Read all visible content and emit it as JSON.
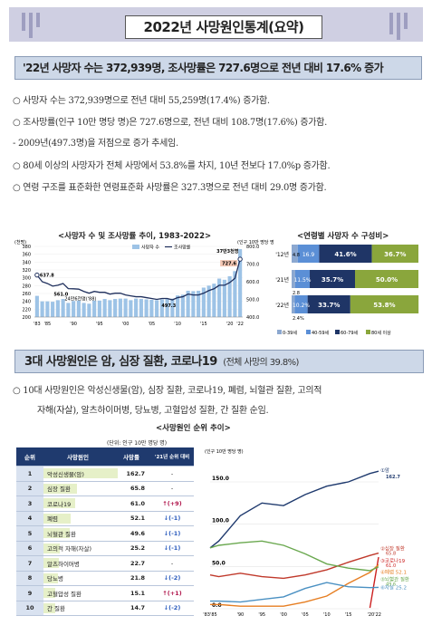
{
  "title": "2022년 사망원인통계(요약)",
  "headline": "'22년 사망자 수는 372,939명, 조사망률은 727.6명으로 전년 대비 17.6% 증가",
  "bullets": [
    "○  사망자 수는 372,939명으로 전년 대비 55,259명(17.4%) 증가함.",
    "○  조사망률(인구 10만 명당 명)은 727.6명으로, 전년 대비 108.7명(17.6%) 증가함.",
    "  - 2009년(497.3명)을 저점으로 증가 추세임.",
    "○  80세 이상의 사망자가 전체 사망에서 53.8%를 차지, 10년 전보다 17.0%p 증가함.",
    "○  연령 구조를 표준화한 연령표준화 사망률은 327.3명으로 전년 대비 29.0명 증가함."
  ],
  "chart1": {
    "title": "<사망자 수 및 조사망률 추이, 1983-2022>",
    "left_unit": "(천명)",
    "right_unit": "(인구 10만 명당 명)",
    "legend_bar": "사망자 수",
    "legend_line": "조사망률",
    "ann_top": "37만3천명",
    "ann_top_rate": "727.6",
    "ann_low": "24만6천명('88)",
    "ann_start": "637.8",
    "ann_561": "561.0",
    "ann_497": "497.3",
    "x_labels": [
      "'83",
      "'85",
      "'90",
      "'95",
      "'00",
      "'05",
      "'10",
      "'15",
      "'20",
      "'22"
    ],
    "left_ticks": [
      "380",
      "360",
      "340",
      "320",
      "300",
      "280",
      "260",
      "240",
      "220",
      "200"
    ],
    "right_ticks": [
      "800.0",
      "700.0",
      "600.0",
      "500.0",
      "400.0"
    ]
  },
  "chart_data": [
    {
      "type": "bar",
      "title": "<사망자 수 및 조사망률 추이, 1983-2022>",
      "x": [
        1983,
        1984,
        1985,
        1986,
        1987,
        1988,
        1989,
        1990,
        1991,
        1992,
        1993,
        1994,
        1995,
        1996,
        1997,
        1998,
        1999,
        2000,
        2001,
        2002,
        2003,
        2004,
        2005,
        2006,
        2007,
        2008,
        2009,
        2010,
        2011,
        2012,
        2013,
        2014,
        2015,
        2016,
        2017,
        2018,
        2019,
        2020,
        2021,
        2022
      ],
      "series": [
        {
          "name": "사망자 수",
          "axis": "left",
          "values": [
            254,
            240,
            240,
            239,
            243,
            246,
            236,
            241,
            242,
            236,
            234,
            242,
            242,
            246,
            243,
            246,
            247,
            247,
            243,
            247,
            246,
            245,
            244,
            243,
            245,
            246,
            247,
            255,
            257,
            267,
            266,
            267,
            275,
            280,
            285,
            298,
            295,
            304,
            317,
            373
          ]
        },
        {
          "name": "조사망률",
          "axis": "right",
          "values": [
            637.8,
            600,
            590,
            575,
            580,
            590,
            561.0,
            560,
            558,
            545,
            535,
            545,
            540,
            540,
            530,
            535,
            535,
            525,
            520,
            515,
            515,
            510,
            505,
            500,
            505,
            505,
            497.3,
            510,
            515,
            530,
            525,
            525,
            535,
            550,
            560,
            580,
            580,
            595,
            619,
            727.6
          ]
        }
      ],
      "ylim_left": [
        200,
        380
      ],
      "ylim_right": [
        400,
        800
      ]
    },
    {
      "type": "bar",
      "title": "<연령별 사망자 수 구성비>",
      "categories": [
        "'12년",
        "'21년",
        "'22년"
      ],
      "series": [
        {
          "name": "0-39세",
          "values": [
            4.8,
            2.8,
            2.4
          ]
        },
        {
          "name": "40-59세",
          "values": [
            16.9,
            11.5,
            10.2
          ]
        },
        {
          "name": "60-79세",
          "values": [
            41.6,
            35.7,
            33.7
          ]
        },
        {
          "name": "80세 이상",
          "values": [
            36.7,
            50.0,
            53.8
          ]
        }
      ]
    },
    {
      "type": "line",
      "title": "<사망원인 순위 추이>",
      "x": [
        "'83",
        "'85",
        "'90",
        "'95",
        "'00",
        "'05",
        "'10",
        "'15",
        "'20",
        "'22"
      ],
      "series": [
        {
          "name": "암",
          "values": [
            72,
            80,
            110,
            125,
            122,
            135,
            145,
            150,
            160,
            162.7
          ]
        },
        {
          "name": "심장 질환",
          "values": [
            40,
            38,
            42,
            38,
            36,
            40,
            46,
            55,
            63,
            65.8
          ]
        },
        {
          "name": "코로나19",
          "values": [
            0,
            0,
            0,
            0,
            0,
            0,
            0,
            0,
            1,
            61.0
          ]
        },
        {
          "name": "폐렴",
          "values": [
            5,
            5,
            3,
            3,
            3,
            8,
            15,
            30,
            43,
            52.1
          ]
        },
        {
          "name": "뇌혈관 질환",
          "values": [
            72,
            75,
            78,
            80,
            75,
            65,
            53,
            48,
            45,
            49.6
          ]
        },
        {
          "name": "자살",
          "values": [
            9,
            9,
            8,
            11,
            14,
            24,
            31,
            26,
            25,
            25.2
          ]
        }
      ],
      "ylim": [
        0,
        160
      ]
    }
  ],
  "chart2": {
    "title": "<연령별 사망자 수 구성비>",
    "rows": [
      {
        "year": "'12년",
        "a": "4.8",
        "b": "16.9",
        "c": "41.6%",
        "d": "36.7%"
      },
      {
        "year": "'21년",
        "a": "2.8",
        "b": "11.5%",
        "c": "35.7%",
        "d": "50.0%"
      },
      {
        "year": "'22년",
        "a": "2.4%",
        "b": "10.2%",
        "c": "33.7%",
        "d": "53.8%"
      }
    ],
    "legend": [
      "0-39세",
      "40-59세",
      "60-79세",
      "80세 이상"
    ],
    "colors": [
      "#8ca8d0",
      "#5b8fd6",
      "#1f3566",
      "#8aa63c"
    ]
  },
  "section2": {
    "title": "3대 사망원인은 암, 심장 질환, 코로나19",
    "sub": "(전체 사망의 39.8%)",
    "bullet1": "○  10대 사망원인은 악성신생물(암), 심장 질환, 코로나19, 폐렴, 뇌혈관 질환, 고의적",
    "bullet2": "자해(자살), 알츠하이머병, 당뇨병, 고혈압성 질환, 간 질환 순임."
  },
  "rank": {
    "title": "<사망원인 순위 추이>",
    "unit": "(단위: 인구 10만 명당 명)",
    "headers": [
      "순위",
      "사망원인",
      "사망률",
      "'21년 순위 대비"
    ],
    "rows": [
      {
        "rank": "1",
        "cause": "악성신생물(암)",
        "rate": "162.7",
        "change": "-",
        "dir": "none",
        "frac": 1.0
      },
      {
        "rank": "2",
        "cause": "심장 질환",
        "rate": "65.8",
        "change": "-",
        "dir": "none",
        "frac": 0.404
      },
      {
        "rank": "3",
        "cause": "코로나19",
        "rate": "61.0",
        "change": "(+9)",
        "dir": "up",
        "frac": 0.375
      },
      {
        "rank": "4",
        "cause": "폐렴",
        "rate": "52.1",
        "change": "(-1)",
        "dir": "down",
        "frac": 0.32
      },
      {
        "rank": "5",
        "cause": "뇌혈관 질환",
        "rate": "49.6",
        "change": "(-1)",
        "dir": "down",
        "frac": 0.305
      },
      {
        "rank": "6",
        "cause": "고의적 자해(자살)",
        "rate": "25.2",
        "change": "(-1)",
        "dir": "down",
        "frac": 0.155
      },
      {
        "rank": "7",
        "cause": "알츠하이머병",
        "rate": "22.7",
        "change": "-",
        "dir": "none",
        "frac": 0.14
      },
      {
        "rank": "8",
        "cause": "당뇨병",
        "rate": "21.8",
        "change": "(-2)",
        "dir": "down",
        "frac": 0.134
      },
      {
        "rank": "9",
        "cause": "고혈압성 질환",
        "rate": "15.1",
        "change": "(+1)",
        "dir": "up",
        "frac": 0.093
      },
      {
        "rank": "10",
        "cause": "간 질환",
        "rate": "14.7",
        "change": "(-2)",
        "dir": "down",
        "frac": 0.09
      }
    ]
  },
  "chart3": {
    "unit": "(인구 10만 명당 명)",
    "y_ticks": [
      "150.0",
      "100.0",
      "50.0",
      "0.0"
    ],
    "x_labels": [
      "'83'85",
      "'90",
      "'95",
      "'00",
      "'05",
      "'10",
      "'15",
      "'20'22"
    ],
    "labels": {
      "cancer": "①암",
      "cancer_v": "162.7",
      "heart": "②심장 질환",
      "heart_v": "65.8",
      "covid": "③코로나19",
      "covid_v": "61.0",
      "pneu": "④폐렴 52.1",
      "stroke": "⑤뇌혈관 질환",
      "stroke_v": "49.6",
      "suicide": "⑥자살 25.2"
    },
    "colors": {
      "cancer": "#1f3a6e",
      "heart": "#c0392b",
      "covid": "#cc1f1f",
      "pneu": "#e67e22",
      "stroke": "#6aa84f",
      "suicide": "#4a90c2"
    }
  }
}
